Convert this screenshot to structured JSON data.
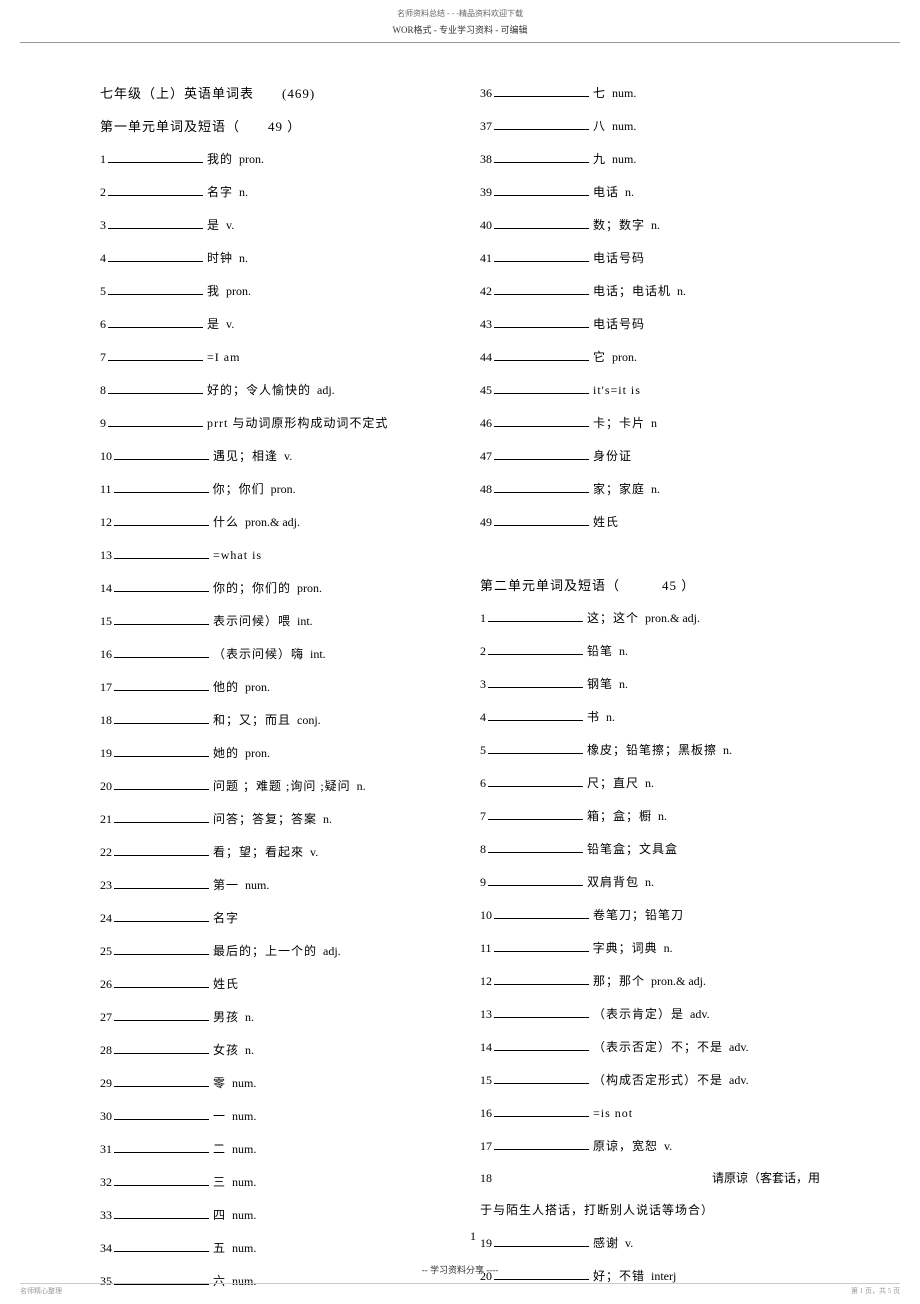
{
  "header": {
    "top": "名师资料总结 - - -精品资料欢迎下载",
    "sub": "WOR格式 - 专业学习资料  - 可编辑"
  },
  "main_title": "七年级（上）英语单词表　　(469)",
  "unit1": {
    "header": "第一单元单词及短语（　　49 ）",
    "items": [
      {
        "n": "1",
        "def": "我的",
        "pos": "pron."
      },
      {
        "n": "2",
        "def": "名字",
        "pos": "n."
      },
      {
        "n": "3",
        "def": "是",
        "pos": "v."
      },
      {
        "n": "4",
        "def": "时钟",
        "pos": "n."
      },
      {
        "n": "5",
        "def": "我",
        "pos": "pron."
      },
      {
        "n": "6",
        "def": "是",
        "pos": "v."
      },
      {
        "n": "7",
        "def": " =I am",
        "pos": ""
      },
      {
        "n": "8",
        "def": "好的；令人愉快的",
        "pos": "adj."
      },
      {
        "n": "9",
        "def": "prrt 与动词原形构成动词不定式",
        "pos": ""
      },
      {
        "n": "10",
        "def": "遇见；相逢",
        "pos": "v."
      },
      {
        "n": "11",
        "def": "你；你们",
        "pos": "pron."
      },
      {
        "n": "12",
        "def": "什么",
        "pos": "pron.& adj."
      },
      {
        "n": "13",
        "def": " =what is",
        "pos": ""
      },
      {
        "n": "14",
        "def": "你的；你们的",
        "pos": "pron."
      },
      {
        "n": "15",
        "def": "表示问候）喂",
        "pos": "int."
      },
      {
        "n": "16",
        "def": "（表示问候）嗨",
        "pos": "int."
      },
      {
        "n": "17",
        "def": "他的",
        "pos": "pron."
      },
      {
        "n": "18",
        "def": "和；又；而且",
        "pos": "conj."
      },
      {
        "n": "19",
        "def": "她的",
        "pos": "pron."
      },
      {
        "n": "20",
        "def": "问题 ；难题 ;询问 ;疑问",
        "pos": "n."
      },
      {
        "n": "21",
        "def": "问答；答复；答案",
        "pos": "n."
      },
      {
        "n": "22",
        "def": "看；望；看起來",
        "pos": "v."
      },
      {
        "n": "23",
        "def": "第一",
        "pos": "num."
      },
      {
        "n": "24",
        "def": "名字",
        "pos": ""
      },
      {
        "n": "25",
        "def": "最后的；上一个的",
        "pos": "adj."
      },
      {
        "n": "26",
        "def": "姓氏",
        "pos": ""
      },
      {
        "n": "27",
        "def": "男孩",
        "pos": "n."
      },
      {
        "n": "28",
        "def": "女孩",
        "pos": "n."
      },
      {
        "n": "29",
        "def": "零",
        "pos": "num."
      },
      {
        "n": "30",
        "def": "一",
        "pos": "num."
      },
      {
        "n": "31",
        "def": "二",
        "pos": "num."
      },
      {
        "n": "32",
        "def": "三",
        "pos": "num."
      },
      {
        "n": "33",
        "def": "四",
        "pos": "num."
      },
      {
        "n": "34",
        "def": "五",
        "pos": "num."
      },
      {
        "n": "35",
        "def": "六",
        "pos": "num."
      }
    ]
  },
  "unit1_right": {
    "items": [
      {
        "n": "36",
        "def": "七",
        "pos": "num."
      },
      {
        "n": "37",
        "def": "八",
        "pos": "num."
      },
      {
        "n": "38",
        "def": "九",
        "pos": "num."
      },
      {
        "n": "39",
        "def": "电话",
        "pos": "n."
      },
      {
        "n": "40",
        "def": "数；数字",
        "pos": "n."
      },
      {
        "n": "41",
        "def": "电话号码",
        "pos": ""
      },
      {
        "n": "42",
        "def": "电话；电话机",
        "pos": "n."
      },
      {
        "n": "43",
        "def": "电话号码",
        "pos": ""
      },
      {
        "n": "44",
        "def": "它",
        "pos": "pron."
      },
      {
        "n": "45",
        "def": "it's=it is",
        "pos": ""
      },
      {
        "n": "46",
        "def": "卡；卡片",
        "pos": "n"
      },
      {
        "n": "47",
        "def": "身份证",
        "pos": ""
      },
      {
        "n": "48",
        "def": "家；家庭",
        "pos": "n."
      },
      {
        "n": "49",
        "def": "姓氏",
        "pos": ""
      }
    ]
  },
  "unit2": {
    "header": "第二单元单词及短语（　　　45 ）",
    "items": [
      {
        "n": "1",
        "def": "这；这个",
        "pos": "pron.& adj."
      },
      {
        "n": "2",
        "def": "铅笔",
        "pos": "n."
      },
      {
        "n": "3",
        "def": "钢笔",
        "pos": "n."
      },
      {
        "n": "4",
        "def": "书",
        "pos": "n."
      },
      {
        "n": "5",
        "def": "橡皮；铅笔擦；黑板擦",
        "pos": "n."
      },
      {
        "n": "6",
        "def": "尺；直尺",
        "pos": "n."
      },
      {
        "n": "7",
        "def": "箱；盒；橱",
        "pos": "n."
      },
      {
        "n": "8",
        "def": "铅笔盒；文具盒",
        "pos": ""
      },
      {
        "n": "9",
        "def": "双肩背包",
        "pos": "n."
      },
      {
        "n": "10",
        "def": "卷笔刀；铅笔刀",
        "pos": ""
      },
      {
        "n": "11",
        "def": "字典；词典",
        "pos": "n."
      },
      {
        "n": "12",
        "def": "那；那个",
        "pos": "pron.& adj."
      },
      {
        "n": "13",
        "def": "（表示肯定）是",
        "pos": "adv."
      },
      {
        "n": "14",
        "def": "（表示否定）不；不是",
        "pos": "adv."
      },
      {
        "n": "15",
        "def": "（构成否定形式）不是",
        "pos": "adv."
      },
      {
        "n": "16",
        "def": " =is not",
        "pos": ""
      },
      {
        "n": "17",
        "def": "原谅，宽恕",
        "pos": "v."
      }
    ],
    "item18_num": "18",
    "item18_right": "请原谅（客套话，用",
    "item18_line2": "于与陌生人搭话，打断别人说话等场合）",
    "items_after": [
      {
        "n": "19",
        "def": "感谢",
        "pos": "v."
      },
      {
        "n": "20",
        "def": "好；不错",
        "pos": "interj"
      }
    ]
  },
  "content_page": "1",
  "footer": {
    "center": "-- 学习资料分享 ----",
    "right": "第 1 页，共 5 页",
    "left": "名师精心整理"
  }
}
